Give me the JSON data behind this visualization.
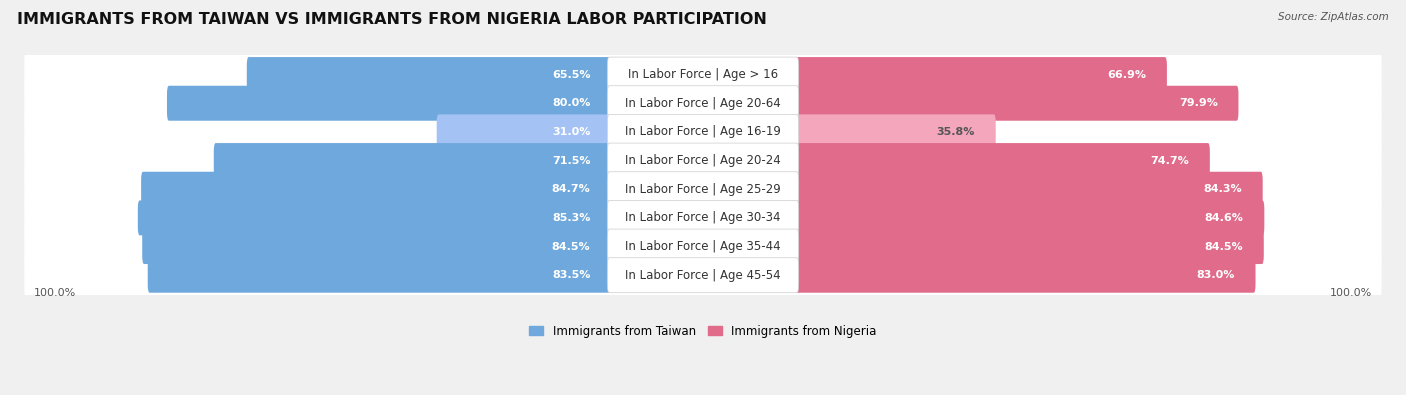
{
  "title": "IMMIGRANTS FROM TAIWAN VS IMMIGRANTS FROM NIGERIA LABOR PARTICIPATION",
  "source": "Source: ZipAtlas.com",
  "categories": [
    "In Labor Force | Age > 16",
    "In Labor Force | Age 20-64",
    "In Labor Force | Age 16-19",
    "In Labor Force | Age 20-24",
    "In Labor Force | Age 25-29",
    "In Labor Force | Age 30-34",
    "In Labor Force | Age 35-44",
    "In Labor Force | Age 45-54"
  ],
  "taiwan_values": [
    65.5,
    80.0,
    31.0,
    71.5,
    84.7,
    85.3,
    84.5,
    83.5
  ],
  "nigeria_values": [
    66.9,
    79.9,
    35.8,
    74.7,
    84.3,
    84.6,
    84.5,
    83.0
  ],
  "taiwan_color": "#6fa8dc",
  "taiwan_color_light": "#a4c2f4",
  "nigeria_color": "#e06b8b",
  "nigeria_color_light": "#f4a7bc",
  "label_taiwan": "Immigrants from Taiwan",
  "label_nigeria": "Immigrants from Nigeria",
  "bg_color": "#f0f0f0",
  "bar_bg_color": "#ffffff",
  "footer_value": "100.0%",
  "title_fontsize": 11.5,
  "label_fontsize": 8.5,
  "value_fontsize": 8.0
}
